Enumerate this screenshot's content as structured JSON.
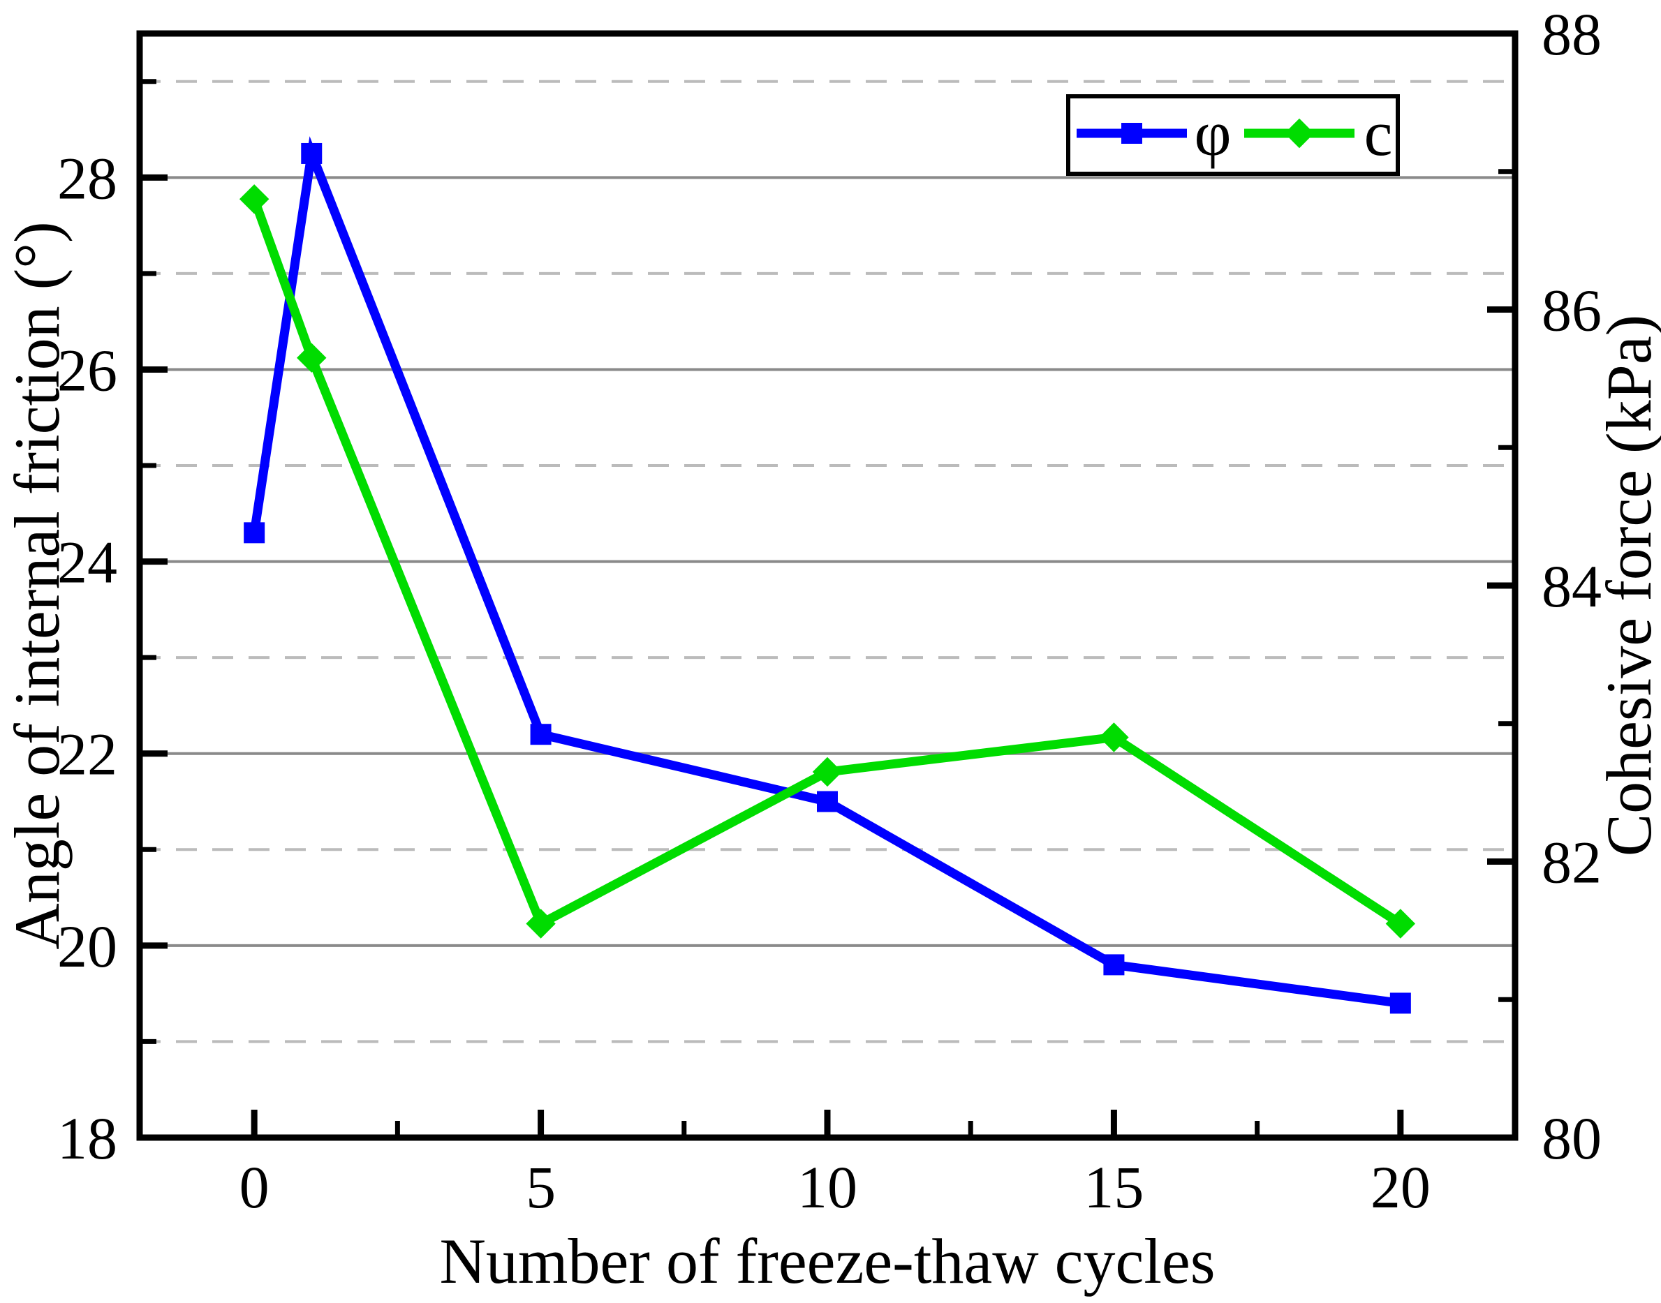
{
  "chart_data": {
    "type": "line",
    "title": "",
    "xlabel": "Number of freeze-thaw cycles",
    "ylabel_left": "Angle of internal friction (°)",
    "ylabel_right": "Cohesive force (kPa)",
    "x": [
      0,
      1,
      5,
      10,
      15,
      20
    ],
    "series": [
      {
        "name": "φ",
        "axis": "left",
        "color": "#0000ff",
        "marker": "square",
        "values": [
          24.3,
          28.25,
          22.2,
          21.5,
          19.8,
          19.4
        ]
      },
      {
        "name": "c",
        "axis": "right",
        "color": "#00dc00",
        "marker": "diamond",
        "values": [
          86.8,
          85.65,
          81.55,
          82.65,
          82.9,
          81.55
        ]
      }
    ],
    "x_axis": {
      "range": [
        -2,
        22
      ],
      "major_ticks": [
        0,
        5,
        10,
        15,
        20
      ],
      "minor_ticks": [
        2.5,
        7.5,
        12.5,
        17.5
      ],
      "major_tick_labels": [
        "0",
        "5",
        "10",
        "15",
        "20"
      ]
    },
    "left_axis": {
      "range": [
        18,
        29.5
      ],
      "major_ticks": [
        18,
        20,
        22,
        24,
        26,
        28
      ],
      "minor_ticks": [
        19,
        21,
        23,
        25,
        27,
        29
      ],
      "major_tick_labels": [
        "18",
        "20",
        "22",
        "24",
        "26",
        "28"
      ]
    },
    "right_axis": {
      "range": [
        80,
        88
      ],
      "major_ticks": [
        80,
        82,
        84,
        86,
        88
      ],
      "minor_ticks": [
        81,
        83,
        85,
        87
      ],
      "major_tick_labels": [
        "80",
        "82",
        "84",
        "86",
        "88"
      ]
    },
    "grid": {
      "solid_at": [
        20,
        22,
        24,
        26,
        28
      ],
      "dashed_at": [
        19,
        21,
        23,
        25,
        27,
        29
      ],
      "solid_color": "#8a8a8a",
      "dashed_color": "#bbbbbb"
    },
    "legend": {
      "position": "top-right",
      "items": [
        {
          "label": "φ"
        },
        {
          "label": "c"
        }
      ]
    },
    "frame_color": "#000000",
    "background": "#ffffff"
  }
}
